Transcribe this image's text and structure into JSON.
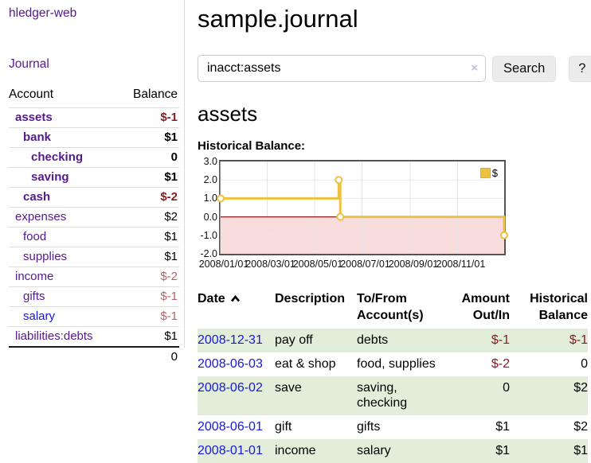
{
  "colors": {
    "accent_purple": "#551a8b",
    "link_blue": "#1717dd",
    "negative_strong": "#8b1a22",
    "negative_soft": "#b4636e",
    "row_green": "#e3eeda",
    "chart_gold": "#edc240",
    "negative_region_pink": "#f9dcdc",
    "zero_line_red": "#8b1a1a"
  },
  "brand": "hledger-web",
  "nav": {
    "journal": "Journal"
  },
  "sidebar": {
    "columns": {
      "account": "Account",
      "balance": "Balance"
    },
    "accounts": [
      {
        "name": "assets",
        "balance": "$-1"
      },
      {
        "name": "bank",
        "balance": "$1"
      },
      {
        "name": "checking",
        "balance": "0"
      },
      {
        "name": "saving",
        "balance": "$1"
      },
      {
        "name": "cash",
        "balance": "$-2"
      },
      {
        "name": "expenses",
        "balance": "$2"
      },
      {
        "name": "food",
        "balance": "$1"
      },
      {
        "name": "supplies",
        "balance": "$1"
      },
      {
        "name": "income",
        "balance": "$-2"
      },
      {
        "name": "gifts",
        "balance": "$-1"
      },
      {
        "name": "salary",
        "balance": "$-1"
      },
      {
        "name": "liabilities:debts",
        "balance": "$1"
      }
    ],
    "total": "0"
  },
  "page": {
    "title": "sample.journal",
    "account_heading": "assets",
    "chart_title": "Historical Balance:"
  },
  "search": {
    "value": "inacct:assets",
    "clear_icon": "×",
    "search_button": "Search",
    "help_button": "?"
  },
  "chart_data": {
    "type": "line",
    "steps": true,
    "legend": "$",
    "legend_position": "top-right",
    "x_range": [
      "2008-01-01",
      "2008-12-31"
    ],
    "y_range": [
      -2,
      3
    ],
    "x_ticks": [
      "2008/01/01",
      "2008/03/01",
      "2008/05/01",
      "2008/07/01",
      "2008/09/01",
      "2008/11/01"
    ],
    "y_ticks": [
      "3.0",
      "2.0",
      "1.0",
      "0.0",
      "-1.0",
      "-2.0"
    ],
    "series": [
      {
        "name": "$",
        "color": "#edc240",
        "points": [
          {
            "date": "2008-01-01",
            "value": 1
          },
          {
            "date": "2008-06-01",
            "value": 2
          },
          {
            "date": "2008-06-03",
            "value": 0
          },
          {
            "date": "2008-12-31",
            "value": -1
          }
        ]
      }
    ],
    "grid": true,
    "negative_region_color": "#f9dcdc",
    "zero_line_color": "#8b1a1a"
  },
  "register": {
    "columns": {
      "date": "Date",
      "description": "Description",
      "account": "To/From Account(s)",
      "amount": "Amount Out/In",
      "balance": "Historical Balance"
    },
    "rows": [
      {
        "date": "2008-12-31",
        "description": "pay off",
        "accounts": "debts",
        "amount": "$-1",
        "balance": "$-1"
      },
      {
        "date": "2008-06-03",
        "description": "eat & shop",
        "accounts": "food, supplies",
        "amount": "$-2",
        "balance": "0"
      },
      {
        "date": "2008-06-02",
        "description": "save",
        "accounts": "saving, checking",
        "amount": "0",
        "balance": "$2"
      },
      {
        "date": "2008-06-01",
        "description": "gift",
        "accounts": "gifts",
        "amount": "$1",
        "balance": "$2"
      },
      {
        "date": "2008-01-01",
        "description": "income",
        "accounts": "salary",
        "amount": "$1",
        "balance": "$1"
      }
    ]
  }
}
